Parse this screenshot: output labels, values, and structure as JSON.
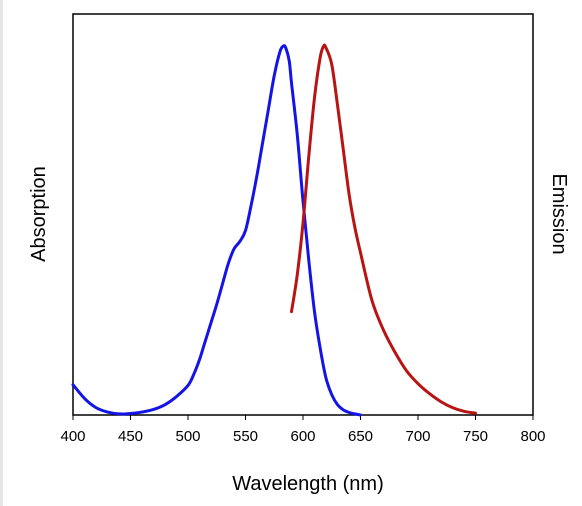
{
  "chart_data": {
    "type": "line",
    "xlabel": "Wavelength (nm)",
    "ylabel_left": "Absorption",
    "ylabel_right": "Emission",
    "xlim": [
      400,
      800
    ],
    "ylim": [
      0,
      1
    ],
    "x_ticks": [
      400,
      450,
      500,
      550,
      600,
      650,
      700,
      750,
      800
    ],
    "x_tick_labels": [
      "400",
      "450",
      "500",
      "550",
      "600",
      "650",
      "700",
      "750",
      "800"
    ],
    "grid": false,
    "legend": false,
    "series": [
      {
        "color": "#1414e6",
        "x": [
          400,
          410,
          420,
          430,
          440,
          450,
          460,
          470,
          480,
          490,
          500,
          505,
          510,
          515,
          520,
          525,
          530,
          535,
          540,
          545,
          550,
          555,
          560,
          565,
          570,
          575,
          580,
          583,
          585,
          588,
          590,
          595,
          600,
          605,
          610,
          615,
          620,
          625,
          630,
          635,
          640,
          645,
          650
        ],
        "y": [
          0.082,
          0.045,
          0.02,
          0.008,
          0.003,
          0.004,
          0.008,
          0.015,
          0.028,
          0.05,
          0.08,
          0.11,
          0.15,
          0.2,
          0.25,
          0.3,
          0.355,
          0.41,
          0.45,
          0.47,
          0.5,
          0.57,
          0.65,
          0.74,
          0.83,
          0.92,
          0.985,
          1.0,
          0.995,
          0.96,
          0.9,
          0.76,
          0.58,
          0.42,
          0.28,
          0.18,
          0.1,
          0.055,
          0.028,
          0.014,
          0.007,
          0.003,
          0.0
        ]
      },
      {
        "color": "#b81414",
        "x": [
          590,
          595,
          600,
          605,
          610,
          615,
          618,
          620,
          625,
          630,
          635,
          640,
          645,
          650,
          660,
          670,
          680,
          690,
          700,
          710,
          720,
          730,
          740,
          750
        ],
        "y": [
          0.28,
          0.38,
          0.52,
          0.7,
          0.86,
          0.97,
          1.0,
          0.995,
          0.95,
          0.84,
          0.72,
          0.6,
          0.51,
          0.44,
          0.31,
          0.23,
          0.17,
          0.12,
          0.085,
          0.058,
          0.036,
          0.02,
          0.01,
          0.005
        ]
      }
    ]
  }
}
